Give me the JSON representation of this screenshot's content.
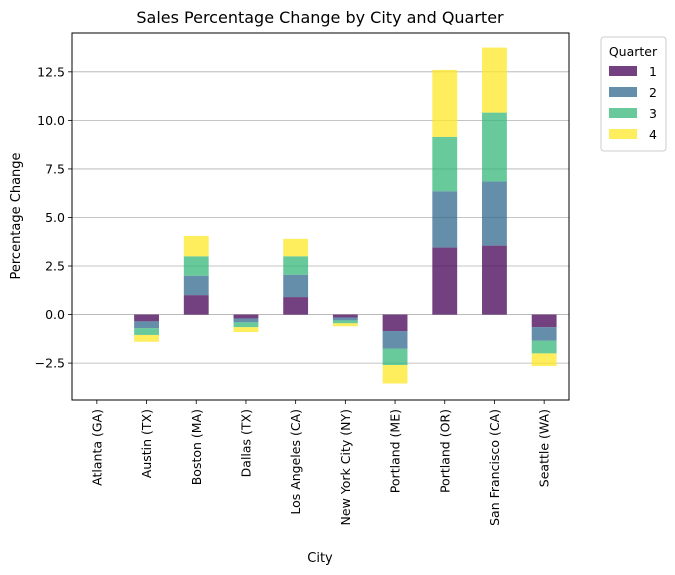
{
  "chart_data": {
    "type": "bar",
    "stacked": true,
    "title": "Sales Percentage Change by City and Quarter",
    "xlabel": "City",
    "ylabel": "Percentage Change",
    "categories": [
      "Atlanta (GA)",
      "Austin (TX)",
      "Boston (MA)",
      "Dallas (TX)",
      "Los Angeles (CA)",
      "New York City (NY)",
      "Portland (ME)",
      "Portland (OR)",
      "San Francisco (CA)",
      "Seattle (WA)"
    ],
    "series": [
      {
        "name": "1",
        "color": "#440154",
        "values": [
          0,
          -0.35,
          1.0,
          -0.2,
          0.9,
          -0.15,
          -0.85,
          3.45,
          3.55,
          -0.65
        ]
      },
      {
        "name": "2",
        "color": "#31688e",
        "values": [
          0,
          -0.35,
          1.0,
          -0.2,
          1.15,
          -0.15,
          -0.9,
          2.9,
          3.3,
          -0.7
        ]
      },
      {
        "name": "3",
        "color": "#35b779",
        "values": [
          0,
          -0.35,
          1.0,
          -0.25,
          0.95,
          -0.15,
          -0.85,
          2.8,
          3.55,
          -0.65
        ]
      },
      {
        "name": "4",
        "color": "#fde725",
        "values": [
          0,
          -0.35,
          1.05,
          -0.25,
          0.9,
          -0.15,
          -0.95,
          3.45,
          3.35,
          -0.65
        ]
      }
    ],
    "ylim": [
      -4.4,
      14.5
    ],
    "yticks": [
      -2.5,
      0.0,
      2.5,
      5.0,
      7.5,
      10.0,
      12.5
    ],
    "ytick_labels": [
      "−2.5",
      "0.0",
      "2.5",
      "5.0",
      "7.5",
      "10.0",
      "12.5"
    ],
    "grid": "y",
    "legend": {
      "title": "Quarter",
      "placement": "outside-top-right"
    },
    "bar_alpha": 0.75
  }
}
